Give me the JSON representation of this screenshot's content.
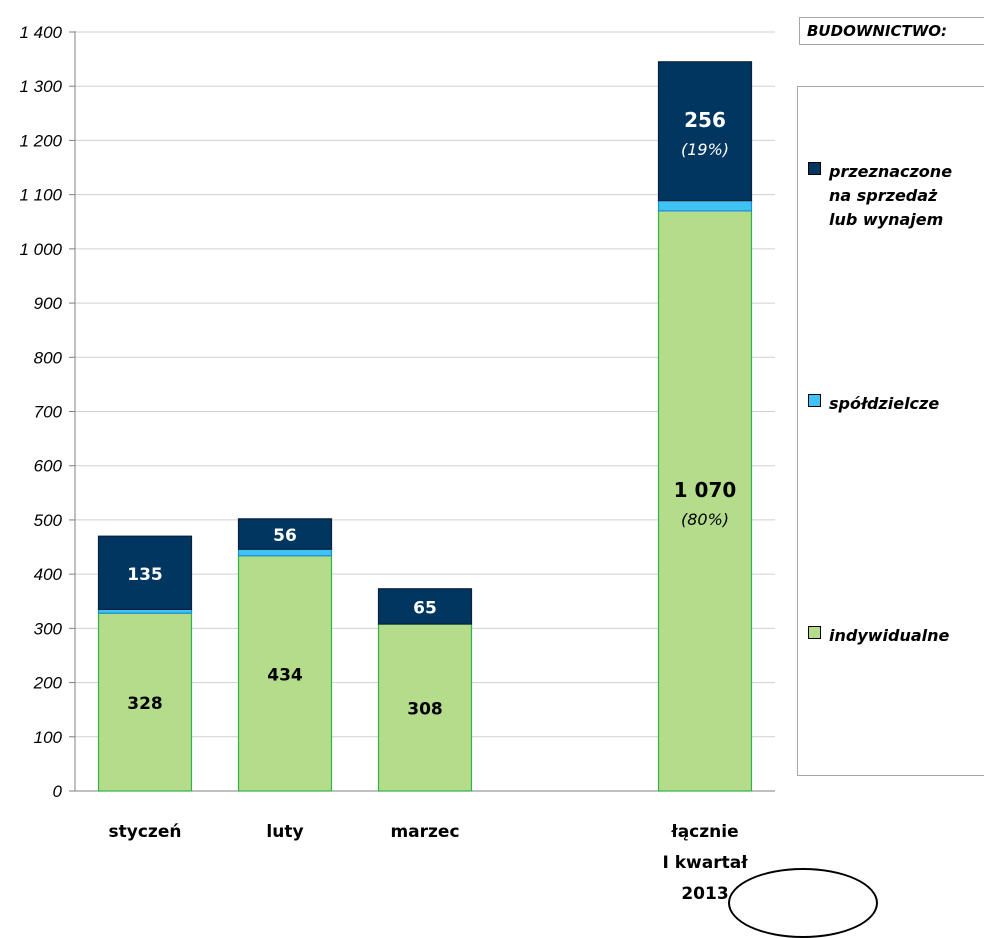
{
  "legend": {
    "title": "BUDOWNICTWO:",
    "items": [
      {
        "lines": [
          "przeznaczone",
          "na sprzedaż",
          "lub wynajem"
        ],
        "color": "#003660"
      },
      {
        "lines": [
          "spółdzielcze"
        ],
        "color": "#3fc2f5"
      },
      {
        "lines": [
          "indywidualne"
        ],
        "color": "#b4dc8a"
      }
    ]
  },
  "chart_data": {
    "type": "bar",
    "stacked": true,
    "ylim": [
      0,
      1400
    ],
    "yticks": [
      0,
      100,
      200,
      300,
      400,
      500,
      600,
      700,
      800,
      900,
      1000,
      1100,
      1200,
      1300,
      1400
    ],
    "ytick_labels": [
      "0",
      "100",
      "200",
      "300",
      "400",
      "500",
      "600",
      "700",
      "800",
      "900",
      "1 000",
      "1 100",
      "1 200",
      "1 300",
      "1 400"
    ],
    "grid": true,
    "categories": [
      {
        "label": [
          "styczeń"
        ]
      },
      {
        "label": [
          "luty"
        ]
      },
      {
        "label": [
          "marzec"
        ]
      },
      {
        "label": [
          "łącznie",
          "I kwartał",
          "2013"
        ]
      }
    ],
    "series": [
      {
        "name": "indywidualne",
        "color": "#b4dc8a",
        "values": [
          328,
          434,
          308,
          1070
        ],
        "labels": [
          "328",
          "434",
          "308",
          "1 070"
        ],
        "pct": [
          "",
          "",
          "",
          "(80%)"
        ]
      },
      {
        "name": "spółdzielcze",
        "color": "#3fc2f5",
        "values": [
          7,
          12,
          0,
          19
        ],
        "labels": [
          "",
          "",
          "",
          ""
        ],
        "pct": [
          "",
          "",
          "",
          ""
        ]
      },
      {
        "name": "przeznaczone na sprzedaż lub wynajem",
        "color": "#003660",
        "values": [
          135,
          56,
          65,
          256
        ],
        "labels": [
          "135",
          "56",
          "65",
          "256"
        ],
        "pct": [
          "",
          "",
          "",
          "(19%)"
        ]
      }
    ]
  }
}
